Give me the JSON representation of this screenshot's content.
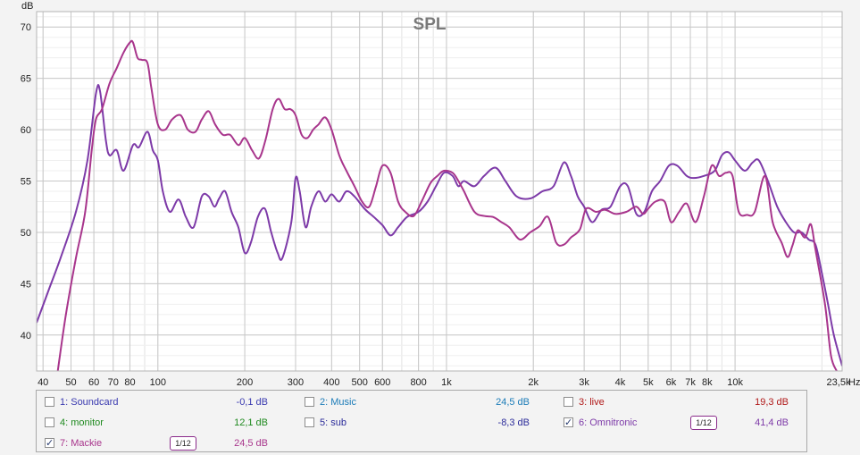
{
  "chart_data": {
    "type": "line",
    "title": "SPL",
    "ylabel": "dB",
    "xunit": "Hz",
    "xscale": "log",
    "xlim": [
      38,
      23500
    ],
    "ylim": [
      36.5,
      71.5
    ],
    "grid": true,
    "yticks": [
      40,
      45,
      50,
      55,
      60,
      65,
      70
    ],
    "xticks": [
      {
        "v": 40,
        "label": "40"
      },
      {
        "v": 50,
        "label": "50"
      },
      {
        "v": 60,
        "label": "60"
      },
      {
        "v": 70,
        "label": "70"
      },
      {
        "v": 80,
        "label": "80"
      },
      {
        "v": 100,
        "label": "100"
      },
      {
        "v": 200,
        "label": "200"
      },
      {
        "v": 300,
        "label": "300"
      },
      {
        "v": 400,
        "label": "400"
      },
      {
        "v": 500,
        "label": "500"
      },
      {
        "v": 600,
        "label": "600"
      },
      {
        "v": 800,
        "label": "800"
      },
      {
        "v": 1000,
        "label": "1k"
      },
      {
        "v": 2000,
        "label": "2k"
      },
      {
        "v": 3000,
        "label": "3k"
      },
      {
        "v": 4000,
        "label": "4k"
      },
      {
        "v": 5000,
        "label": "5k"
      },
      {
        "v": 6000,
        "label": "6k"
      },
      {
        "v": 7000,
        "label": "7k"
      },
      {
        "v": 8000,
        "label": "8k"
      },
      {
        "v": 10000,
        "label": "10k"
      },
      {
        "v": 23500,
        "label": "23,5k"
      }
    ],
    "series": [
      {
        "name": "6: Omnitronic",
        "color": "#7d3aa8",
        "points": [
          [
            38,
            41.2
          ],
          [
            42,
            44.5
          ],
          [
            46,
            47.5
          ],
          [
            52,
            52
          ],
          [
            57,
            57
          ],
          [
            61,
            63.5
          ],
          [
            63,
            63.8
          ],
          [
            66,
            59
          ],
          [
            68,
            57.5
          ],
          [
            72,
            58
          ],
          [
            76,
            56
          ],
          [
            82,
            58.5
          ],
          [
            86,
            58.3
          ],
          [
            92,
            59.8
          ],
          [
            96,
            58
          ],
          [
            100,
            57
          ],
          [
            104,
            54
          ],
          [
            110,
            52
          ],
          [
            118,
            53.2
          ],
          [
            125,
            51.5
          ],
          [
            133,
            50.5
          ],
          [
            142,
            53.5
          ],
          [
            150,
            53.5
          ],
          [
            157,
            52.5
          ],
          [
            163,
            53.3
          ],
          [
            171,
            54
          ],
          [
            180,
            52
          ],
          [
            190,
            50.5
          ],
          [
            200,
            48
          ],
          [
            210,
            49
          ],
          [
            222,
            51.5
          ],
          [
            235,
            52.3
          ],
          [
            247,
            50
          ],
          [
            260,
            48
          ],
          [
            270,
            47.5
          ],
          [
            290,
            51
          ],
          [
            300,
            55.3
          ],
          [
            310,
            54
          ],
          [
            325,
            50.5
          ],
          [
            340,
            52.5
          ],
          [
            360,
            54
          ],
          [
            380,
            53
          ],
          [
            400,
            53.7
          ],
          [
            425,
            53
          ],
          [
            450,
            54
          ],
          [
            480,
            53.5
          ],
          [
            520,
            52.3
          ],
          [
            560,
            51.5
          ],
          [
            600,
            50.7
          ],
          [
            640,
            49.7
          ],
          [
            680,
            50.5
          ],
          [
            730,
            51.5
          ],
          [
            800,
            52
          ],
          [
            860,
            53
          ],
          [
            920,
            54.5
          ],
          [
            980,
            55.8
          ],
          [
            1050,
            55.5
          ],
          [
            1100,
            54.5
          ],
          [
            1150,
            55
          ],
          [
            1250,
            54.5
          ],
          [
            1350,
            55.5
          ],
          [
            1480,
            56.3
          ],
          [
            1600,
            55
          ],
          [
            1750,
            53.5
          ],
          [
            1950,
            53.3
          ],
          [
            2150,
            54
          ],
          [
            2350,
            54.5
          ],
          [
            2550,
            56.8
          ],
          [
            2700,
            55.5
          ],
          [
            2850,
            53.5
          ],
          [
            3000,
            52.5
          ],
          [
            3200,
            51
          ],
          [
            3450,
            52.2
          ],
          [
            3700,
            52.5
          ],
          [
            4000,
            54.5
          ],
          [
            4250,
            54.5
          ],
          [
            4550,
            51.8
          ],
          [
            4850,
            52
          ],
          [
            5150,
            54
          ],
          [
            5500,
            55
          ],
          [
            5900,
            56.5
          ],
          [
            6300,
            56.5
          ],
          [
            6800,
            55.5
          ],
          [
            7200,
            55.3
          ],
          [
            7800,
            55.5
          ],
          [
            8500,
            56
          ],
          [
            9000,
            57.5
          ],
          [
            9500,
            57.8
          ],
          [
            10000,
            57
          ],
          [
            10800,
            56
          ],
          [
            11500,
            56.8
          ],
          [
            12100,
            57
          ],
          [
            13000,
            55
          ],
          [
            14000,
            52.5
          ],
          [
            15000,
            51
          ],
          [
            16000,
            50
          ],
          [
            17000,
            50
          ],
          [
            18000,
            49.3
          ],
          [
            19000,
            48.8
          ],
          [
            20000,
            46
          ],
          [
            21000,
            43
          ],
          [
            22000,
            40
          ],
          [
            23500,
            37
          ]
        ]
      },
      {
        "name": "7: Mackie",
        "color": "#a8358c",
        "points": [
          [
            45,
            36.5
          ],
          [
            48,
            42
          ],
          [
            52,
            47.5
          ],
          [
            56,
            52
          ],
          [
            59,
            58
          ],
          [
            61,
            61
          ],
          [
            64,
            62
          ],
          [
            68,
            64.5
          ],
          [
            72,
            66
          ],
          [
            76,
            67.5
          ],
          [
            80,
            68.5
          ],
          [
            82,
            68.5
          ],
          [
            85,
            67
          ],
          [
            88,
            66.8
          ],
          [
            92,
            66.5
          ],
          [
            95,
            64
          ],
          [
            100,
            60.5
          ],
          [
            106,
            60
          ],
          [
            112,
            61
          ],
          [
            120,
            61.4
          ],
          [
            127,
            60
          ],
          [
            135,
            59.8
          ],
          [
            142,
            61
          ],
          [
            150,
            61.8
          ],
          [
            158,
            60.5
          ],
          [
            168,
            59.5
          ],
          [
            178,
            59.5
          ],
          [
            190,
            58.5
          ],
          [
            200,
            59.2
          ],
          [
            212,
            58
          ],
          [
            224,
            57.2
          ],
          [
            236,
            59
          ],
          [
            250,
            62
          ],
          [
            262,
            63
          ],
          [
            275,
            62
          ],
          [
            288,
            62
          ],
          [
            300,
            61.4
          ],
          [
            315,
            59.5
          ],
          [
            330,
            59.2
          ],
          [
            345,
            60
          ],
          [
            360,
            60.5
          ],
          [
            380,
            61.2
          ],
          [
            400,
            60
          ],
          [
            425,
            57.5
          ],
          [
            450,
            56
          ],
          [
            480,
            54.5
          ],
          [
            510,
            53
          ],
          [
            540,
            52.5
          ],
          [
            570,
            54.5
          ],
          [
            600,
            56.5
          ],
          [
            640,
            55.8
          ],
          [
            680,
            53
          ],
          [
            720,
            52
          ],
          [
            770,
            51.6
          ],
          [
            820,
            53
          ],
          [
            880,
            54.8
          ],
          [
            930,
            55.5
          ],
          [
            980,
            56
          ],
          [
            1050,
            55.8
          ],
          [
            1100,
            55
          ],
          [
            1150,
            54
          ],
          [
            1250,
            52
          ],
          [
            1350,
            51.6
          ],
          [
            1450,
            51.5
          ],
          [
            1550,
            51
          ],
          [
            1650,
            50.5
          ],
          [
            1800,
            49.3
          ],
          [
            1950,
            50
          ],
          [
            2100,
            50.6
          ],
          [
            2250,
            51.5
          ],
          [
            2400,
            49
          ],
          [
            2550,
            48.8
          ],
          [
            2700,
            49.5
          ],
          [
            2900,
            50.3
          ],
          [
            3050,
            52.3
          ],
          [
            3300,
            52
          ],
          [
            3550,
            52.2
          ],
          [
            3850,
            51.8
          ],
          [
            4200,
            52
          ],
          [
            4550,
            52.5
          ],
          [
            4800,
            51.8
          ],
          [
            5000,
            52.3
          ],
          [
            5300,
            53
          ],
          [
            5700,
            53
          ],
          [
            6000,
            51
          ],
          [
            6400,
            52
          ],
          [
            6800,
            52.8
          ],
          [
            7300,
            51
          ],
          [
            7800,
            53.5
          ],
          [
            8300,
            56.5
          ],
          [
            8800,
            55.5
          ],
          [
            9300,
            55.8
          ],
          [
            9800,
            55.5
          ],
          [
            10300,
            52
          ],
          [
            11000,
            51.7
          ],
          [
            11700,
            52
          ],
          [
            12700,
            55.5
          ],
          [
            13500,
            51
          ],
          [
            14500,
            49
          ],
          [
            15200,
            47.6
          ],
          [
            15800,
            48.7
          ],
          [
            16500,
            50.2
          ],
          [
            17500,
            49.5
          ],
          [
            18300,
            50.8
          ],
          [
            19000,
            48.3
          ],
          [
            20500,
            43
          ],
          [
            21500,
            38
          ],
          [
            22500,
            36.5
          ]
        ]
      }
    ],
    "legend": [
      {
        "name": "1: Soundcard",
        "value": "-0,1 dB",
        "checked": false,
        "name_color": "#3b3bb0",
        "value_color": "#3b3bb0"
      },
      {
        "name": "2: Music",
        "value": "24,5 dB",
        "checked": false,
        "name_color": "#1c7cb8",
        "value_color": "#1c7cb8"
      },
      {
        "name": "3: live",
        "value": "19,3 dB",
        "checked": false,
        "name_color": "#b11a1a",
        "value_color": "#b11a1a"
      },
      {
        "name": "4: monitor",
        "value": "12,1 dB",
        "checked": false,
        "name_color": "#1f8a1f",
        "value_color": "#1f8a1f"
      },
      {
        "name": "5: sub",
        "value": "-8,3 dB",
        "checked": false,
        "name_color": "#2b2b9a",
        "value_color": "#2b2b9a"
      },
      {
        "name": "6: Omnitronic",
        "value": "41,4 dB",
        "checked": true,
        "name_color": "#7d3aa8",
        "value_color": "#7d3aa8",
        "smoothing": "1/12"
      },
      {
        "name": "7: Mackie",
        "value": "24,5 dB",
        "checked": true,
        "name_color": "#a8358c",
        "value_color": "#a8358c",
        "smoothing": "1/12"
      }
    ],
    "checkbox_mark": "✓"
  }
}
